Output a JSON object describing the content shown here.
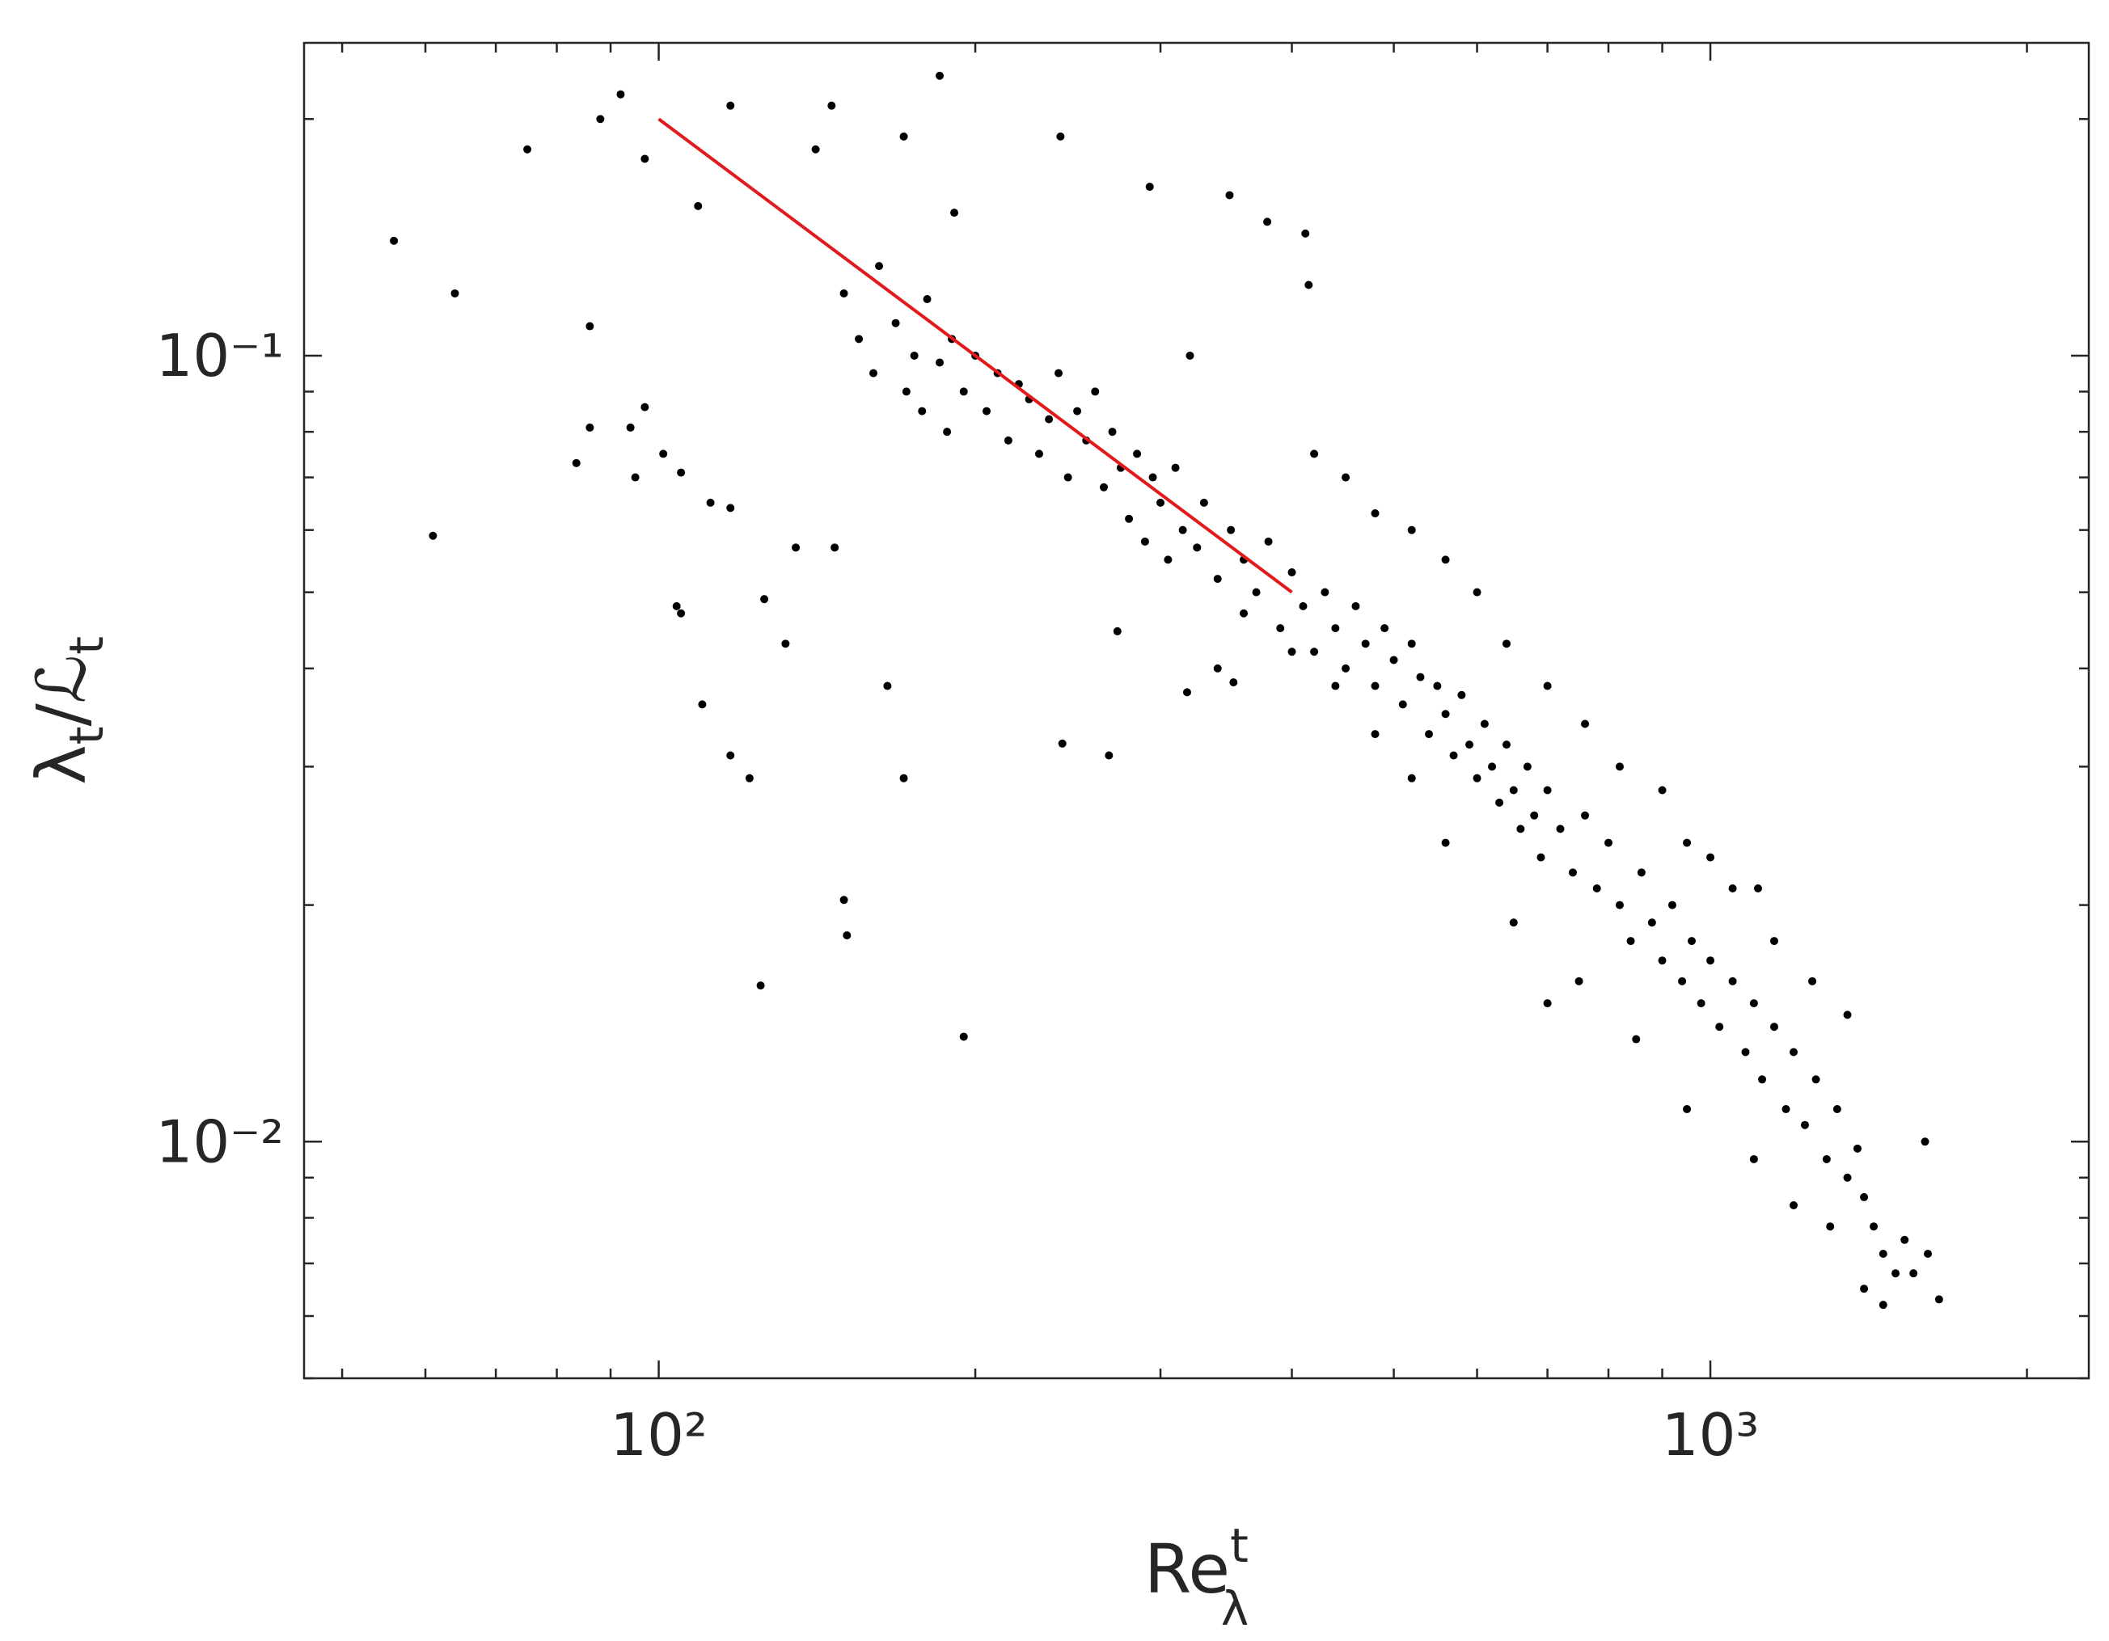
{
  "chart_data": {
    "type": "scatter",
    "xlabel": {
      "text": "Re",
      "sub": "λ",
      "sup": "t"
    },
    "ylabel": [
      "λ",
      "t",
      "/ℒ",
      "t"
    ],
    "xscale": "log",
    "yscale": "log",
    "xlim": [
      46,
      2290
    ],
    "ylim": [
      0.005,
      0.25
    ],
    "xticks": [
      {
        "value": 100,
        "label": "10²"
      },
      {
        "value": 1000,
        "label": "10³"
      }
    ],
    "yticks": [
      {
        "value": 0.01,
        "label": "10⁻²"
      },
      {
        "value": 0.1,
        "label": "10⁻¹"
      }
    ],
    "xminorticks": [
      50,
      60,
      70,
      80,
      90,
      200,
      300,
      400,
      500,
      600,
      700,
      800,
      900,
      2000
    ],
    "yminorticks": [
      0.005,
      0.006,
      0.007,
      0.008,
      0.009,
      0.02,
      0.03,
      0.04,
      0.05,
      0.06,
      0.07,
      0.08,
      0.09,
      0.2
    ],
    "series": [
      {
        "color": "#000000",
        "x": [
          56,
          64,
          61,
          75,
          83.5,
          86,
          86,
          88,
          92,
          95,
          94,
          97,
          97,
          101,
          104,
          105,
          105,
          110,
          112,
          117,
          117,
          122,
          125,
          126,
          132,
          135,
          117,
          109,
          146,
          141,
          147,
          150,
          151,
          165,
          171,
          171,
          185,
          195,
          191,
          241,
          242,
          268,
          293,
          349,
          379,
          412,
          415,
          352,
          318,
          273,
          150,
          155,
          160,
          162,
          168,
          172,
          175,
          178,
          180,
          185,
          188,
          190,
          195,
          200,
          205,
          210,
          215,
          220,
          225,
          230,
          235,
          240,
          245,
          250,
          255,
          260,
          265,
          270,
          275,
          280,
          285,
          290,
          295,
          300,
          305,
          310,
          315,
          320,
          325,
          330,
          340,
          350,
          360,
          370,
          380,
          390,
          400,
          410,
          420,
          430,
          440,
          450,
          460,
          470,
          480,
          490,
          500,
          510,
          520,
          530,
          540,
          550,
          560,
          570,
          580,
          590,
          600,
          610,
          620,
          630,
          640,
          650,
          660,
          670,
          680,
          690,
          700,
          720,
          740,
          760,
          780,
          800,
          820,
          840,
          860,
          880,
          900,
          920,
          940,
          960,
          980,
          1000,
          1020,
          1050,
          1080,
          1100,
          1120,
          1150,
          1180,
          1200,
          1230,
          1260,
          1290,
          1320,
          1350,
          1380,
          1400,
          1430,
          1460,
          1500,
          1530,
          1560,
          1600,
          1610,
          1650,
          1460,
          1400,
          1300,
          1200,
          1100,
          950,
          850,
          750,
          650,
          700,
          1250,
          1350,
          1150,
          1050,
          950,
          900,
          1000,
          820,
          760,
          700,
          640,
          600,
          560,
          520,
          480,
          1110,
          450,
          420,
          560,
          520,
          480,
          440,
          400,
          360,
          340
        ],
        "values": [
          0.14,
          0.12,
          0.059,
          0.183,
          0.073,
          0.109,
          0.081,
          0.2,
          0.215,
          0.07,
          0.081,
          0.178,
          0.086,
          0.075,
          0.048,
          0.047,
          0.071,
          0.036,
          0.065,
          0.064,
          0.031,
          0.029,
          0.0158,
          0.049,
          0.043,
          0.057,
          0.208,
          0.155,
          0.208,
          0.183,
          0.057,
          0.0203,
          0.0183,
          0.038,
          0.029,
          0.19,
          0.227,
          0.0136,
          0.152,
          0.19,
          0.0321,
          0.031,
          0.164,
          0.16,
          0.148,
          0.143,
          0.123,
          0.0384,
          0.0373,
          0.0446,
          0.12,
          0.105,
          0.095,
          0.13,
          0.11,
          0.09,
          0.1,
          0.085,
          0.118,
          0.098,
          0.08,
          0.105,
          0.09,
          0.1,
          0.085,
          0.095,
          0.078,
          0.092,
          0.088,
          0.075,
          0.083,
          0.095,
          0.07,
          0.085,
          0.078,
          0.09,
          0.068,
          0.08,
          0.072,
          0.062,
          0.075,
          0.058,
          0.07,
          0.065,
          0.055,
          0.072,
          0.06,
          0.1,
          0.057,
          0.065,
          0.052,
          0.06,
          0.055,
          0.05,
          0.058,
          0.045,
          0.053,
          0.048,
          0.042,
          0.05,
          0.045,
          0.04,
          0.048,
          0.043,
          0.038,
          0.045,
          0.041,
          0.036,
          0.043,
          0.039,
          0.033,
          0.038,
          0.035,
          0.031,
          0.037,
          0.032,
          0.029,
          0.034,
          0.03,
          0.027,
          0.032,
          0.028,
          0.025,
          0.03,
          0.026,
          0.023,
          0.028,
          0.025,
          0.022,
          0.026,
          0.021,
          0.024,
          0.02,
          0.018,
          0.022,
          0.019,
          0.017,
          0.02,
          0.016,
          0.018,
          0.015,
          0.017,
          0.014,
          0.016,
          0.013,
          0.015,
          0.012,
          0.014,
          0.011,
          0.013,
          0.0105,
          0.012,
          0.0095,
          0.011,
          0.009,
          0.0098,
          0.0085,
          0.0078,
          0.0072,
          0.0068,
          0.0075,
          0.0068,
          0.01,
          0.0072,
          0.0063,
          0.0062,
          0.0065,
          0.0078,
          0.0083,
          0.0095,
          0.011,
          0.0135,
          0.016,
          0.019,
          0.015,
          0.016,
          0.0145,
          0.018,
          0.021,
          0.024,
          0.028,
          0.023,
          0.03,
          0.034,
          0.038,
          0.043,
          0.05,
          0.055,
          0.06,
          0.063,
          0.021,
          0.07,
          0.075,
          0.024,
          0.029,
          0.033,
          0.038,
          0.042,
          0.047,
          0.04
        ]
      }
    ],
    "fit": {
      "x": [
        100,
        400
      ],
      "y": [
        0.2,
        0.05
      ],
      "color": "#e31a1c"
    }
  }
}
